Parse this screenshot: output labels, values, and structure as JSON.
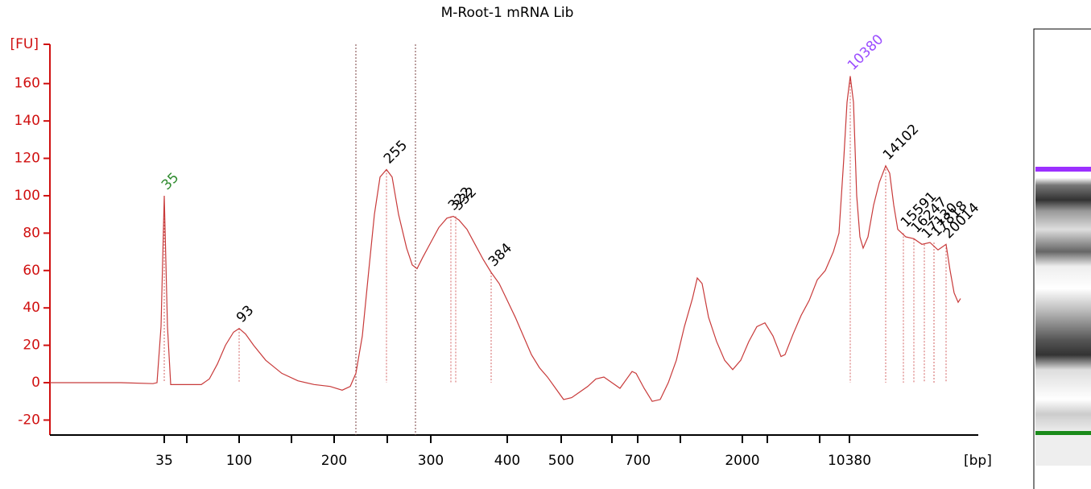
{
  "chart_data": {
    "type": "line",
    "title": "M-Root-1 mRNA Lib",
    "y_label": "[FU]",
    "x_label": "[bp]",
    "axis_color": "#d01010",
    "xlim": [
      62,
      1195
    ],
    "ylim": [
      -28,
      181
    ],
    "yticks": [
      -20,
      0,
      20,
      40,
      60,
      80,
      100,
      120,
      140,
      160
    ],
    "xticks": [
      {
        "value": 204,
        "label": "35"
      },
      {
        "value": 232,
        "label": null
      },
      {
        "value": 297,
        "label": "100"
      },
      {
        "value": 362,
        "label": null
      },
      {
        "value": 415,
        "label": "200"
      },
      {
        "value": 481,
        "label": null
      },
      {
        "value": 535,
        "label": "300"
      },
      {
        "value": 630,
        "label": "400"
      },
      {
        "value": 697,
        "label": "500"
      },
      {
        "value": 760,
        "label": null
      },
      {
        "value": 792,
        "label": "700"
      },
      {
        "value": 845,
        "label": null
      },
      {
        "value": 922,
        "label": "2000"
      },
      {
        "value": 953,
        "label": null
      },
      {
        "value": 1018,
        "label": null
      },
      {
        "value": 1055,
        "label": "10380"
      }
    ],
    "markers_x": [
      442,
      516
    ],
    "series": [
      {
        "color": "#c83a3a",
        "x": [
          62,
          100,
          150,
          190,
          195,
          200,
          204,
          208,
          212,
          230,
          250,
          260,
          270,
          280,
          290,
          297,
          305,
          315,
          330,
          350,
          370,
          390,
          410,
          425,
          435,
          442,
          450,
          458,
          465,
          472,
          480,
          487,
          495,
          505,
          512,
          518,
          525,
          535,
          545,
          555,
          563,
          570,
          580,
          590,
          600,
          610,
          620,
          630,
          640,
          650,
          660,
          670,
          680,
          690,
          700,
          710,
          720,
          730,
          740,
          750,
          760,
          770,
          780,
          785,
          790,
          800,
          810,
          820,
          830,
          840,
          850,
          860,
          866,
          872,
          880,
          890,
          900,
          910,
          920,
          930,
          940,
          950,
          960,
          970,
          975,
          985,
          995,
          1005,
          1015,
          1025,
          1035,
          1042,
          1048,
          1052,
          1056,
          1060,
          1064,
          1068,
          1072,
          1078,
          1085,
          1092,
          1100,
          1105,
          1110,
          1115,
          1125,
          1135,
          1145,
          1155,
          1165,
          1175,
          1180,
          1185,
          1190,
          1193
        ],
        "values": [
          0,
          0,
          0,
          -0.5,
          0,
          30,
          100,
          30,
          -1,
          -1,
          -1,
          2,
          10,
          20,
          27,
          29,
          26,
          20,
          12,
          5,
          1,
          -1,
          -2,
          -4,
          -2,
          5,
          25,
          60,
          90,
          110,
          114,
          110,
          90,
          72,
          63,
          61,
          67,
          75,
          83,
          88,
          89,
          87,
          82,
          74,
          66,
          59,
          53,
          44,
          35,
          25,
          15,
          8,
          3,
          -3,
          -9,
          -8,
          -5,
          -2,
          2,
          3,
          0,
          -3,
          3,
          6,
          5,
          -3,
          -10,
          -9,
          0,
          12,
          30,
          45,
          56,
          53,
          35,
          22,
          12,
          7,
          12,
          22,
          30,
          32,
          25,
          14,
          15,
          26,
          36,
          44,
          55,
          60,
          70,
          80,
          120,
          150,
          164,
          150,
          100,
          78,
          72,
          78,
          95,
          107,
          116,
          112,
          95,
          82,
          78,
          77,
          74,
          75,
          71,
          74,
          60,
          48,
          43,
          45
        ]
      }
    ],
    "peaks": [
      {
        "label": "35",
        "x": 204,
        "y": 100,
        "color": "#2e8b2e"
      },
      {
        "label": "93",
        "x": 297,
        "y": 29,
        "color": "#000000"
      },
      {
        "label": "255",
        "x": 480,
        "y": 114,
        "color": "#000000"
      },
      {
        "label": "322",
        "x": 560,
        "y": 89,
        "color": "#000000"
      },
      {
        "label": "332",
        "x": 566,
        "y": 89,
        "color": "#000000"
      },
      {
        "label": "384",
        "x": 610,
        "y": 59,
        "color": "#000000"
      },
      {
        "label": "10380",
        "x": 1056,
        "y": 164,
        "color": "#9b4dff"
      },
      {
        "label": "14102",
        "x": 1100,
        "y": 116,
        "color": "#000000"
      },
      {
        "label": "15591",
        "x": 1122,
        "y": 80,
        "color": "#000000"
      },
      {
        "label": "16247",
        "x": 1135,
        "y": 77,
        "color": "#000000"
      },
      {
        "label": "17130",
        "x": 1148,
        "y": 74,
        "color": "#000000"
      },
      {
        "label": "17818",
        "x": 1160,
        "y": 75,
        "color": "#000000"
      },
      {
        "label": "20014",
        "x": 1175,
        "y": 74,
        "color": "#000000"
      }
    ]
  }
}
